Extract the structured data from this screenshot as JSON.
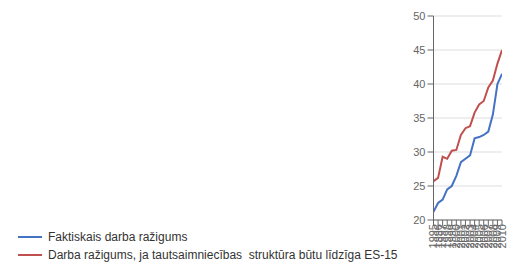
{
  "chart_data": {
    "type": "line",
    "x": [
      1995,
      1996,
      1997,
      1998,
      1999,
      2000,
      2001,
      2002,
      2003,
      2004,
      2005,
      2006,
      2007,
      2008,
      2009,
      2010
    ],
    "xlim": [
      1995,
      2010
    ],
    "xticks": [
      1995,
      1996,
      1997,
      1998,
      1999,
      2000,
      2001,
      2002,
      2003,
      2004,
      2005,
      2006,
      2007,
      2008,
      2009,
      2010
    ],
    "series": [
      {
        "name": "Faktiskais darba ražigums",
        "color": "#4472C4",
        "values": [
          21.2,
          22.5,
          23.0,
          24.5,
          25.0,
          26.5,
          28.5,
          29.0,
          29.5,
          32.0,
          32.2,
          32.5,
          33.0,
          35.5,
          40.0,
          41.5
        ]
      },
      {
        "name": "Darba ražigums, ja tautsaimniecības  struktūra būtu līdzīga ES-15",
        "color": "#C0504D",
        "values": [
          25.7,
          26.2,
          29.3,
          29.0,
          30.2,
          30.3,
          32.5,
          33.5,
          33.8,
          35.8,
          37.0,
          37.5,
          39.5,
          40.5,
          43.0,
          45.0
        ]
      }
    ],
    "ylim": [
      20,
      50
    ],
    "yticks": [
      20,
      25,
      30,
      35,
      40,
      45,
      50
    ],
    "grid": true,
    "legend": "bottom"
  }
}
